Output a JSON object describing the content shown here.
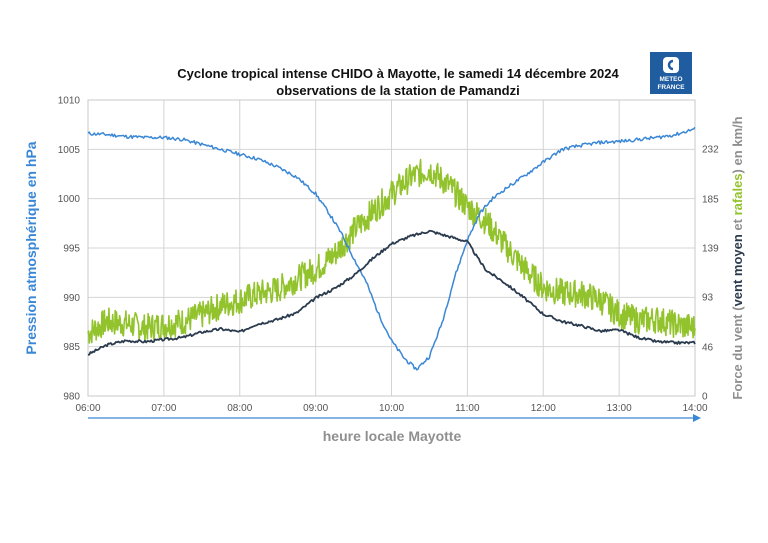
{
  "chart_data": {
    "type": "line",
    "title": [
      "Cyclone tropical intense CHIDO à Mayotte, le samedi 14 décembre 2024",
      "observations de la station de Pamandzi"
    ],
    "xlabel": "heure locale Mayotte",
    "ylabel_left": "Pression atmosphérique en hPa",
    "ylabel_right": {
      "prefix": "Force du vent (",
      "mean": "vent moyen",
      "and": " et ",
      "gusts": "rafales",
      "suffix": ") en  km/h"
    },
    "x_ticks": [
      "06:00",
      "07:00",
      "08:00",
      "09:00",
      "10:00",
      "11:00",
      "12:00",
      "13:00",
      "14:00"
    ],
    "y_left_ticks": [
      "980",
      "985",
      "990",
      "995",
      "1000",
      "1005",
      "1010"
    ],
    "y_left_range": [
      980,
      1010
    ],
    "y_right_ticks": [
      "0",
      "46",
      "93",
      "139",
      "185",
      "232"
    ],
    "y_right_range": [
      0,
      278
    ],
    "grid": true,
    "series": [
      {
        "name": "Pression atmosphérique",
        "axis": "left",
        "color": "#3a87d6",
        "points": [
          [
            6.0,
            1006.6
          ],
          [
            6.25,
            1006.5
          ],
          [
            6.5,
            1006.3
          ],
          [
            6.75,
            1006.2
          ],
          [
            7.0,
            1006.2
          ],
          [
            7.25,
            1006.0
          ],
          [
            7.5,
            1005.5
          ],
          [
            7.75,
            1005.0
          ],
          [
            8.0,
            1004.5
          ],
          [
            8.25,
            1004.0
          ],
          [
            8.5,
            1003.2
          ],
          [
            8.75,
            1002.2
          ],
          [
            9.0,
            1000.5
          ],
          [
            9.17,
            998.6
          ],
          [
            9.33,
            996.6
          ],
          [
            9.5,
            994.0
          ],
          [
            9.67,
            991.5
          ],
          [
            9.83,
            988.3
          ],
          [
            10.0,
            985.6
          ],
          [
            10.17,
            983.8
          ],
          [
            10.33,
            982.7
          ],
          [
            10.5,
            984.0
          ],
          [
            10.67,
            987.5
          ],
          [
            10.83,
            992.0
          ],
          [
            11.0,
            995.8
          ],
          [
            11.17,
            998.6
          ],
          [
            11.33,
            1000.0
          ],
          [
            11.5,
            1001.0
          ],
          [
            11.75,
            1002.3
          ],
          [
            12.0,
            1003.7
          ],
          [
            12.25,
            1005.0
          ],
          [
            12.5,
            1005.4
          ],
          [
            12.75,
            1005.7
          ],
          [
            13.0,
            1005.8
          ],
          [
            13.25,
            1006.0
          ],
          [
            13.5,
            1006.2
          ],
          [
            13.75,
            1006.5
          ],
          [
            14.0,
            1007.1
          ]
        ]
      },
      {
        "name": "vent moyen",
        "axis": "right",
        "color": "#2b3b4e",
        "points": [
          [
            6.0,
            39
          ],
          [
            6.25,
            48
          ],
          [
            6.5,
            52
          ],
          [
            6.75,
            51
          ],
          [
            7.0,
            53
          ],
          [
            7.25,
            55
          ],
          [
            7.5,
            60
          ],
          [
            7.75,
            63
          ],
          [
            8.0,
            60
          ],
          [
            8.2,
            67
          ],
          [
            8.5,
            72
          ],
          [
            8.75,
            78
          ],
          [
            9.0,
            92
          ],
          [
            9.25,
            101
          ],
          [
            9.5,
            113
          ],
          [
            9.75,
            129
          ],
          [
            10.0,
            143
          ],
          [
            10.25,
            150
          ],
          [
            10.5,
            155
          ],
          [
            10.75,
            150
          ],
          [
            11.0,
            145
          ],
          [
            11.15,
            128
          ],
          [
            11.25,
            118
          ],
          [
            11.5,
            106
          ],
          [
            11.75,
            92
          ],
          [
            12.0,
            77
          ],
          [
            12.25,
            70
          ],
          [
            12.5,
            66
          ],
          [
            12.75,
            61
          ],
          [
            13.0,
            62
          ],
          [
            13.25,
            55
          ],
          [
            13.5,
            51
          ],
          [
            13.75,
            50
          ],
          [
            14.0,
            50
          ]
        ]
      },
      {
        "name": "rafales",
        "axis": "right",
        "color": "#92c32d",
        "points": [
          [
            6.0,
            59
          ],
          [
            6.25,
            70
          ],
          [
            6.5,
            68
          ],
          [
            6.75,
            64
          ],
          [
            7.0,
            67
          ],
          [
            7.25,
            70
          ],
          [
            7.5,
            76
          ],
          [
            7.75,
            85
          ],
          [
            8.0,
            90
          ],
          [
            8.25,
            96
          ],
          [
            8.5,
            100
          ],
          [
            8.75,
            110
          ],
          [
            9.0,
            119
          ],
          [
            9.25,
            133
          ],
          [
            9.5,
            155
          ],
          [
            9.75,
            173
          ],
          [
            10.0,
            190
          ],
          [
            10.25,
            205
          ],
          [
            10.5,
            213
          ],
          [
            10.75,
            198
          ],
          [
            11.0,
            178
          ],
          [
            11.25,
            164
          ],
          [
            11.5,
            141
          ],
          [
            11.75,
            120
          ],
          [
            12.0,
            102
          ],
          [
            12.25,
            97
          ],
          [
            12.5,
            96
          ],
          [
            12.75,
            90
          ],
          [
            13.0,
            77
          ],
          [
            13.25,
            71
          ],
          [
            13.5,
            72
          ],
          [
            13.75,
            67
          ],
          [
            14.0,
            64
          ]
        ]
      }
    ]
  },
  "logo": {
    "line1": "METEO",
    "line2": "FRANCE",
    "bg_color": "#1f5ca0"
  }
}
